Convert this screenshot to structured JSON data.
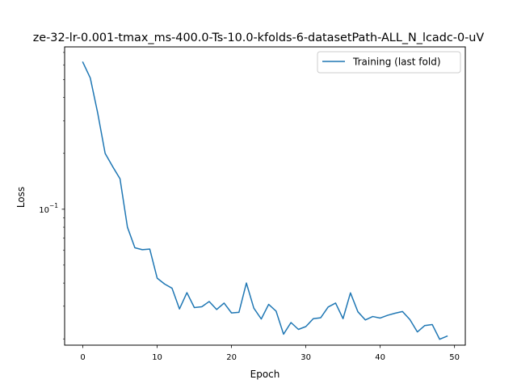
{
  "chart_data": {
    "type": "line",
    "title": "ze-32-lr-0.001-tmax_ms-400.0-Ts-10.0-kfolds-6-datasetPath-ALL_N_lcadc-0-uV",
    "xlabel": "Epoch",
    "ylabel": "Loss",
    "yscale": "log",
    "xlim": [
      -2.45,
      51.45
    ],
    "ylim": [
      0.0185,
      0.75
    ],
    "xticks": [
      0,
      10,
      20,
      30,
      40,
      50
    ],
    "xtick_labels": [
      "0",
      "10",
      "20",
      "30",
      "40",
      "50"
    ],
    "yticks": [
      0.1
    ],
    "ytick_labels": [
      "10",
      "−1"
    ],
    "grid": false,
    "legend": "top-right",
    "series": [
      {
        "name": "Training (last fold)",
        "color": "#1f77b4",
        "x": [
          0,
          1,
          2,
          3,
          4,
          5,
          6,
          7,
          8,
          9,
          10,
          11,
          12,
          13,
          14,
          15,
          16,
          17,
          18,
          19,
          20,
          21,
          22,
          23,
          24,
          25,
          26,
          27,
          28,
          29,
          30,
          31,
          32,
          33,
          34,
          35,
          36,
          37,
          38,
          39,
          40,
          41,
          42,
          43,
          44,
          45,
          46,
          47,
          48,
          49
        ],
        "y": [
          0.62,
          0.51,
          0.33,
          0.2,
          0.17,
          0.146,
          0.08,
          0.062,
          0.0605,
          0.061,
          0.0425,
          0.0395,
          0.0375,
          0.029,
          0.0355,
          0.0295,
          0.0298,
          0.0318,
          0.0288,
          0.0312,
          0.0276,
          0.0278,
          0.04,
          0.0293,
          0.0256,
          0.0307,
          0.0282,
          0.0212,
          0.0245,
          0.0225,
          0.0233,
          0.0257,
          0.026,
          0.0297,
          0.0312,
          0.0257,
          0.0354,
          0.028,
          0.0253,
          0.0264,
          0.0259,
          0.0268,
          0.0275,
          0.0281,
          0.0254,
          0.0218,
          0.0236,
          0.0239,
          0.0199,
          0.0207
        ]
      }
    ]
  }
}
